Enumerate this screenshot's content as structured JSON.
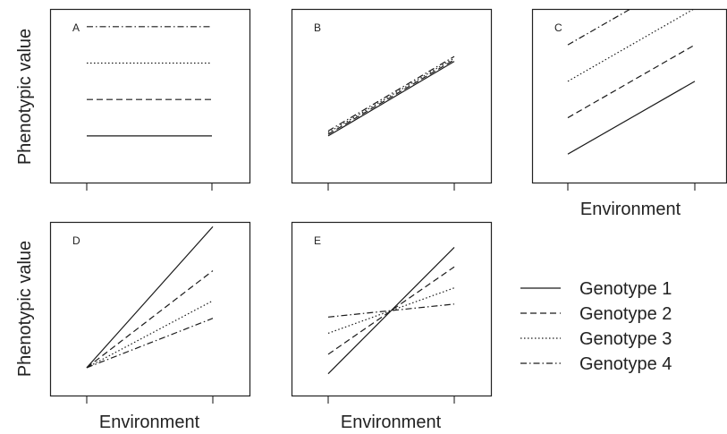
{
  "y_axis_label": "Phenotypic value",
  "x_axis_label": "Environment",
  "legend": {
    "entries": [
      {
        "label": "Genotype 1",
        "dash": "solid"
      },
      {
        "label": "Genotype 2",
        "dash": "dashed"
      },
      {
        "label": "Genotype 3",
        "dash": "dotted"
      },
      {
        "label": "Genotype 4",
        "dash": "dashdot"
      }
    ]
  },
  "colors": {
    "line": "#1a1a1a",
    "frame": "#222222",
    "background": "#ffffff"
  },
  "chart_data": [
    {
      "type": "line",
      "title": "A",
      "xlabel": "",
      "ylabel": "Phenotypic value",
      "x": [
        0,
        1
      ],
      "xlim": [
        0,
        1
      ],
      "ylim": [
        0,
        1
      ],
      "grid": false,
      "series": [
        {
          "name": "Genotype 1",
          "values": [
            0.26,
            0.26
          ]
        },
        {
          "name": "Genotype 2",
          "values": [
            0.48,
            0.48
          ]
        },
        {
          "name": "Genotype 3",
          "values": [
            0.7,
            0.7
          ]
        },
        {
          "name": "Genotype 4",
          "values": [
            0.92,
            0.92
          ]
        }
      ]
    },
    {
      "type": "line",
      "title": "B",
      "xlabel": "",
      "ylabel": "",
      "x": [
        0,
        1
      ],
      "xlim": [
        0,
        1
      ],
      "ylim": [
        0,
        1
      ],
      "grid": false,
      "series": [
        {
          "name": "Genotype 1",
          "values": [
            0.26,
            0.71
          ]
        },
        {
          "name": "Genotype 2",
          "values": [
            0.27,
            0.72
          ]
        },
        {
          "name": "Genotype 3",
          "values": [
            0.28,
            0.73
          ]
        },
        {
          "name": "Genotype 4",
          "values": [
            0.29,
            0.74
          ]
        }
      ]
    },
    {
      "type": "line",
      "title": "C",
      "xlabel": "Environment",
      "ylabel": "",
      "x": [
        0,
        1
      ],
      "xlim": [
        0,
        1
      ],
      "ylim": [
        0,
        1
      ],
      "grid": false,
      "series": [
        {
          "name": "Genotype 1",
          "values": [
            0.15,
            0.59
          ]
        },
        {
          "name": "Genotype 2",
          "values": [
            0.37,
            0.81
          ]
        },
        {
          "name": "Genotype 3",
          "values": [
            0.59,
            1.03
          ]
        },
        {
          "name": "Genotype 4",
          "values": [
            0.81,
            1.25
          ]
        }
      ]
    },
    {
      "type": "line",
      "title": "D",
      "xlabel": "Environment",
      "ylabel": "Phenotypic value",
      "x": [
        0,
        1
      ],
      "xlim": [
        0,
        1
      ],
      "ylim": [
        0,
        1
      ],
      "grid": false,
      "series": [
        {
          "name": "Genotype 1",
          "values": [
            0.3,
            1.1
          ]
        },
        {
          "name": "Genotype 2",
          "values": [
            0.3,
            0.85
          ]
        },
        {
          "name": "Genotype 3",
          "values": [
            0.3,
            0.68
          ]
        },
        {
          "name": "Genotype 4",
          "values": [
            0.3,
            0.58
          ]
        }
      ]
    },
    {
      "type": "line",
      "title": "E",
      "xlabel": "Environment",
      "ylabel": "",
      "x": [
        0,
        1
      ],
      "xlim": [
        0,
        1
      ],
      "ylim": [
        0,
        1
      ],
      "grid": false,
      "series": [
        {
          "name": "Genotype 1",
          "values": [
            0.14,
            0.92
          ]
        },
        {
          "name": "Genotype 2",
          "values": [
            0.26,
            0.8
          ]
        },
        {
          "name": "Genotype 3",
          "values": [
            0.39,
            0.67
          ]
        },
        {
          "name": "Genotype 4",
          "values": [
            0.49,
            0.57
          ]
        }
      ]
    }
  ]
}
